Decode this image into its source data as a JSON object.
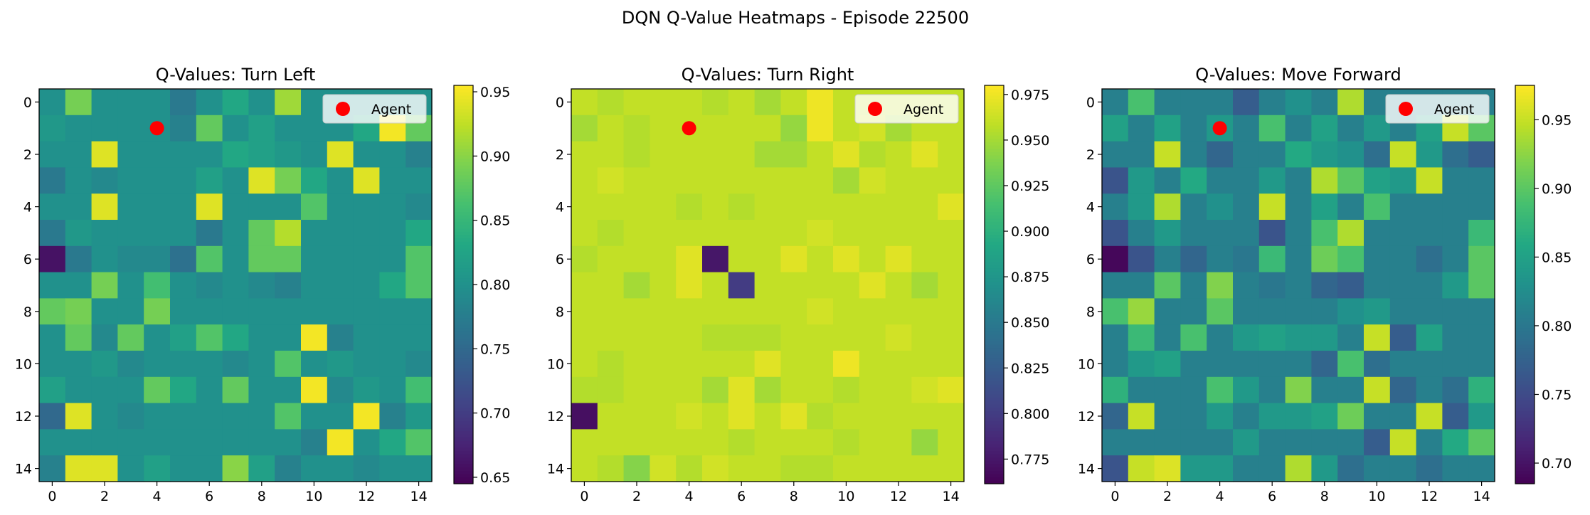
{
  "figure": {
    "suptitle": "DQN Q-Value Heatmaps - Episode 22500"
  },
  "colormap": "viridis",
  "chart_data": [
    {
      "type": "heatmap",
      "title": "Q-Values: Turn Left",
      "xlabel": "",
      "ylabel": "",
      "x_ticks": [
        0,
        2,
        4,
        6,
        8,
        10,
        12,
        14
      ],
      "y_ticks": [
        0,
        2,
        4,
        6,
        8,
        10,
        12,
        14
      ],
      "colorbar": {
        "min": 0.645,
        "max": 0.955,
        "ticks": [
          "0.65",
          "0.70",
          "0.75",
          "0.80",
          "0.85",
          "0.90",
          "0.95"
        ]
      },
      "agent": {
        "x": 4,
        "y": 1,
        "label": "Agent",
        "color": "#ff0000"
      },
      "legend_position": "upper-right",
      "z": [
        [
          0.8,
          0.89,
          0.8,
          0.8,
          0.8,
          0.77,
          0.8,
          0.83,
          0.8,
          0.91,
          0.8,
          0.8,
          0.8,
          0.8,
          0.8
        ],
        [
          0.81,
          0.8,
          0.8,
          0.8,
          0.8,
          0.78,
          0.88,
          0.8,
          0.82,
          0.8,
          0.8,
          0.8,
          0.83,
          0.95,
          0.88
        ],
        [
          0.8,
          0.8,
          0.94,
          0.8,
          0.8,
          0.8,
          0.8,
          0.83,
          0.82,
          0.81,
          0.8,
          0.94,
          0.8,
          0.8,
          0.78
        ],
        [
          0.77,
          0.8,
          0.79,
          0.8,
          0.8,
          0.8,
          0.82,
          0.8,
          0.94,
          0.89,
          0.83,
          0.8,
          0.94,
          0.8,
          0.8
        ],
        [
          0.8,
          0.8,
          0.94,
          0.8,
          0.8,
          0.8,
          0.94,
          0.8,
          0.8,
          0.8,
          0.87,
          0.8,
          0.8,
          0.8,
          0.79
        ],
        [
          0.77,
          0.81,
          0.8,
          0.8,
          0.8,
          0.8,
          0.77,
          0.8,
          0.88,
          0.92,
          0.8,
          0.8,
          0.8,
          0.8,
          0.83
        ],
        [
          0.66,
          0.77,
          0.8,
          0.79,
          0.79,
          0.76,
          0.87,
          0.8,
          0.88,
          0.88,
          0.8,
          0.8,
          0.8,
          0.8,
          0.87
        ],
        [
          0.8,
          0.8,
          0.89,
          0.8,
          0.86,
          0.8,
          0.79,
          0.8,
          0.79,
          0.78,
          0.8,
          0.8,
          0.8,
          0.83,
          0.87
        ],
        [
          0.88,
          0.89,
          0.8,
          0.8,
          0.89,
          0.8,
          0.8,
          0.8,
          0.8,
          0.8,
          0.8,
          0.8,
          0.8,
          0.8,
          0.8
        ],
        [
          0.8,
          0.88,
          0.79,
          0.88,
          0.8,
          0.82,
          0.87,
          0.83,
          0.8,
          0.8,
          0.95,
          0.78,
          0.8,
          0.8,
          0.8
        ],
        [
          0.8,
          0.8,
          0.81,
          0.79,
          0.8,
          0.8,
          0.8,
          0.79,
          0.8,
          0.87,
          0.8,
          0.81,
          0.8,
          0.8,
          0.79
        ],
        [
          0.82,
          0.8,
          0.8,
          0.8,
          0.88,
          0.83,
          0.8,
          0.88,
          0.8,
          0.8,
          0.95,
          0.79,
          0.81,
          0.8,
          0.86
        ],
        [
          0.75,
          0.94,
          0.8,
          0.79,
          0.8,
          0.8,
          0.8,
          0.8,
          0.8,
          0.87,
          0.8,
          0.8,
          0.95,
          0.78,
          0.81
        ],
        [
          0.8,
          0.8,
          0.8,
          0.8,
          0.8,
          0.8,
          0.8,
          0.8,
          0.8,
          0.8,
          0.78,
          0.95,
          0.8,
          0.83,
          0.87
        ],
        [
          0.78,
          0.94,
          0.94,
          0.8,
          0.82,
          0.8,
          0.8,
          0.9,
          0.82,
          0.78,
          0.8,
          0.8,
          0.79,
          0.8,
          0.8
        ]
      ]
    },
    {
      "type": "heatmap",
      "title": "Q-Values: Turn Right",
      "xlabel": "",
      "ylabel": "",
      "x_ticks": [
        0,
        2,
        4,
        6,
        8,
        10,
        12,
        14
      ],
      "y_ticks": [
        0,
        2,
        4,
        6,
        8,
        10,
        12,
        14
      ],
      "colorbar": {
        "min": 0.7615,
        "max": 0.98,
        "ticks": [
          "0.775",
          "0.800",
          "0.825",
          "0.850",
          "0.875",
          "0.900",
          "0.925",
          "0.950",
          "0.975"
        ]
      },
      "agent": {
        "x": 4,
        "y": 1,
        "label": "Agent",
        "color": "#ff0000"
      },
      "legend_position": "upper-right",
      "z": [
        [
          0.96,
          0.955,
          0.96,
          0.96,
          0.96,
          0.955,
          0.96,
          0.95,
          0.96,
          0.975,
          0.96,
          0.96,
          0.96,
          0.96,
          0.96
        ],
        [
          0.95,
          0.96,
          0.955,
          0.96,
          0.96,
          0.96,
          0.96,
          0.96,
          0.945,
          0.975,
          0.96,
          0.965,
          0.95,
          0.96,
          0.96
        ],
        [
          0.96,
          0.96,
          0.955,
          0.96,
          0.96,
          0.96,
          0.96,
          0.95,
          0.95,
          0.96,
          0.97,
          0.955,
          0.96,
          0.97,
          0.96
        ],
        [
          0.96,
          0.965,
          0.96,
          0.96,
          0.96,
          0.96,
          0.96,
          0.96,
          0.96,
          0.96,
          0.95,
          0.965,
          0.96,
          0.96,
          0.96
        ],
        [
          0.96,
          0.96,
          0.96,
          0.96,
          0.955,
          0.96,
          0.955,
          0.96,
          0.96,
          0.96,
          0.96,
          0.96,
          0.96,
          0.96,
          0.97
        ],
        [
          0.96,
          0.955,
          0.96,
          0.96,
          0.96,
          0.96,
          0.96,
          0.96,
          0.96,
          0.965,
          0.96,
          0.96,
          0.96,
          0.96,
          0.96
        ],
        [
          0.955,
          0.96,
          0.96,
          0.96,
          0.97,
          0.775,
          0.96,
          0.96,
          0.97,
          0.96,
          0.97,
          0.96,
          0.97,
          0.96,
          0.96
        ],
        [
          0.96,
          0.96,
          0.95,
          0.96,
          0.97,
          0.96,
          0.8,
          0.96,
          0.96,
          0.96,
          0.96,
          0.97,
          0.96,
          0.95,
          0.96
        ],
        [
          0.96,
          0.96,
          0.96,
          0.96,
          0.96,
          0.96,
          0.96,
          0.96,
          0.96,
          0.965,
          0.96,
          0.96,
          0.96,
          0.96,
          0.96
        ],
        [
          0.96,
          0.96,
          0.96,
          0.96,
          0.96,
          0.955,
          0.955,
          0.955,
          0.96,
          0.96,
          0.96,
          0.96,
          0.965,
          0.96,
          0.96
        ],
        [
          0.96,
          0.955,
          0.96,
          0.96,
          0.96,
          0.96,
          0.96,
          0.97,
          0.96,
          0.96,
          0.975,
          0.96,
          0.96,
          0.96,
          0.96
        ],
        [
          0.955,
          0.955,
          0.96,
          0.96,
          0.96,
          0.95,
          0.97,
          0.95,
          0.96,
          0.96,
          0.955,
          0.96,
          0.96,
          0.965,
          0.97
        ],
        [
          0.77,
          0.96,
          0.96,
          0.96,
          0.965,
          0.96,
          0.97,
          0.96,
          0.97,
          0.955,
          0.96,
          0.96,
          0.96,
          0.96,
          0.96
        ],
        [
          0.96,
          0.96,
          0.96,
          0.96,
          0.96,
          0.96,
          0.955,
          0.96,
          0.96,
          0.96,
          0.955,
          0.96,
          0.96,
          0.945,
          0.96
        ],
        [
          0.96,
          0.955,
          0.94,
          0.965,
          0.955,
          0.965,
          0.96,
          0.96,
          0.955,
          0.955,
          0.96,
          0.96,
          0.96,
          0.96,
          0.96
        ]
      ]
    },
    {
      "type": "heatmap",
      "title": "Q-Values: Move Forward",
      "xlabel": "",
      "ylabel": "",
      "x_ticks": [
        0,
        2,
        4,
        6,
        8,
        10,
        12,
        14
      ],
      "y_ticks": [
        0,
        2,
        4,
        6,
        8,
        10,
        12,
        14
      ],
      "colorbar": {
        "min": 0.685,
        "max": 0.975,
        "ticks": [
          "0.70",
          "0.75",
          "0.80",
          "0.85",
          "0.90",
          "0.95"
        ]
      },
      "agent": {
        "x": 4,
        "y": 1,
        "label": "Agent",
        "color": "#ff0000"
      },
      "legend_position": "upper-right",
      "z": [
        [
          0.81,
          0.89,
          0.81,
          0.81,
          0.81,
          0.77,
          0.81,
          0.83,
          0.81,
          0.94,
          0.81,
          0.81,
          0.81,
          0.81,
          0.81
        ],
        [
          0.85,
          0.81,
          0.85,
          0.81,
          0.84,
          0.81,
          0.89,
          0.81,
          0.85,
          0.81,
          0.84,
          0.81,
          0.85,
          0.95,
          0.9
        ],
        [
          0.81,
          0.81,
          0.95,
          0.81,
          0.78,
          0.81,
          0.81,
          0.86,
          0.84,
          0.83,
          0.79,
          0.95,
          0.84,
          0.79,
          0.77
        ],
        [
          0.76,
          0.84,
          0.81,
          0.86,
          0.81,
          0.81,
          0.84,
          0.81,
          0.94,
          0.9,
          0.85,
          0.84,
          0.95,
          0.81,
          0.81
        ],
        [
          0.81,
          0.84,
          0.94,
          0.81,
          0.83,
          0.81,
          0.95,
          0.81,
          0.85,
          0.81,
          0.89,
          0.81,
          0.81,
          0.81,
          0.81
        ],
        [
          0.76,
          0.81,
          0.84,
          0.81,
          0.81,
          0.81,
          0.76,
          0.81,
          0.89,
          0.94,
          0.81,
          0.81,
          0.81,
          0.81,
          0.88
        ],
        [
          0.69,
          0.76,
          0.81,
          0.78,
          0.81,
          0.8,
          0.88,
          0.81,
          0.91,
          0.89,
          0.81,
          0.81,
          0.79,
          0.81,
          0.9
        ],
        [
          0.81,
          0.81,
          0.9,
          0.81,
          0.92,
          0.81,
          0.8,
          0.81,
          0.78,
          0.77,
          0.81,
          0.81,
          0.81,
          0.84,
          0.9
        ],
        [
          0.89,
          0.93,
          0.81,
          0.81,
          0.9,
          0.81,
          0.81,
          0.81,
          0.81,
          0.83,
          0.84,
          0.81,
          0.81,
          0.81,
          0.81
        ],
        [
          0.81,
          0.88,
          0.81,
          0.89,
          0.81,
          0.84,
          0.85,
          0.84,
          0.84,
          0.81,
          0.95,
          0.77,
          0.85,
          0.81,
          0.81
        ],
        [
          0.81,
          0.84,
          0.85,
          0.81,
          0.81,
          0.81,
          0.81,
          0.81,
          0.78,
          0.89,
          0.79,
          0.81,
          0.81,
          0.81,
          0.81
        ],
        [
          0.87,
          0.81,
          0.81,
          0.81,
          0.89,
          0.84,
          0.81,
          0.92,
          0.81,
          0.81,
          0.95,
          0.78,
          0.81,
          0.79,
          0.87
        ],
        [
          0.78,
          0.95,
          0.81,
          0.81,
          0.84,
          0.81,
          0.84,
          0.84,
          0.85,
          0.91,
          0.81,
          0.81,
          0.95,
          0.77,
          0.84
        ],
        [
          0.81,
          0.81,
          0.81,
          0.81,
          0.81,
          0.84,
          0.81,
          0.81,
          0.81,
          0.81,
          0.77,
          0.95,
          0.81,
          0.86,
          0.9
        ],
        [
          0.76,
          0.95,
          0.96,
          0.84,
          0.84,
          0.81,
          0.81,
          0.94,
          0.84,
          0.79,
          0.81,
          0.81,
          0.79,
          0.81,
          0.81
        ]
      ]
    }
  ]
}
